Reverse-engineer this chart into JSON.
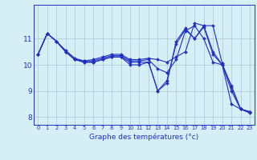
{
  "xlabel": "Graphe des températures (°c)",
  "background_color": "#d6eef5",
  "line_color": "#2030c0",
  "grid_color": "#b0cdd8",
  "x_ticks": [
    0,
    1,
    2,
    3,
    4,
    5,
    6,
    7,
    8,
    9,
    10,
    11,
    12,
    13,
    14,
    15,
    16,
    17,
    18,
    19,
    20,
    21,
    22,
    23
  ],
  "ylim": [
    7.7,
    12.3
  ],
  "xlim": [
    -0.5,
    23.5
  ],
  "series": [
    [
      10.4,
      11.2,
      10.9,
      10.5,
      10.2,
      10.15,
      10.15,
      10.25,
      10.35,
      10.35,
      10.15,
      10.15,
      10.2,
      9.85,
      9.7,
      10.2,
      11.3,
      11.5,
      11.0,
      10.1,
      10.0,
      9.2,
      8.3,
      8.2
    ],
    [
      10.4,
      11.2,
      10.9,
      10.55,
      10.25,
      10.15,
      10.2,
      10.3,
      10.4,
      10.4,
      10.2,
      10.2,
      10.25,
      10.2,
      10.1,
      10.3,
      10.5,
      11.6,
      11.5,
      11.5,
      10.05,
      9.15,
      8.3,
      8.2
    ],
    [
      10.4,
      11.2,
      10.9,
      10.5,
      10.2,
      10.1,
      10.1,
      10.2,
      10.3,
      10.3,
      10.1,
      10.1,
      10.1,
      9.0,
      9.3,
      10.9,
      11.4,
      11.0,
      11.5,
      10.5,
      10.0,
      8.5,
      8.3,
      8.2
    ],
    [
      10.4,
      11.2,
      10.9,
      10.5,
      10.2,
      10.1,
      10.1,
      10.2,
      10.3,
      10.3,
      10.0,
      10.0,
      10.1,
      9.0,
      9.4,
      10.8,
      11.35,
      11.0,
      11.45,
      10.4,
      10.0,
      9.0,
      8.3,
      8.15
    ]
  ],
  "yticks": [
    8,
    9,
    10,
    11
  ],
  "ylabel_fontsize": 6.5,
  "xlabel_fontsize": 6.5,
  "xtick_fontsize": 4.8,
  "ytick_fontsize": 6.5
}
